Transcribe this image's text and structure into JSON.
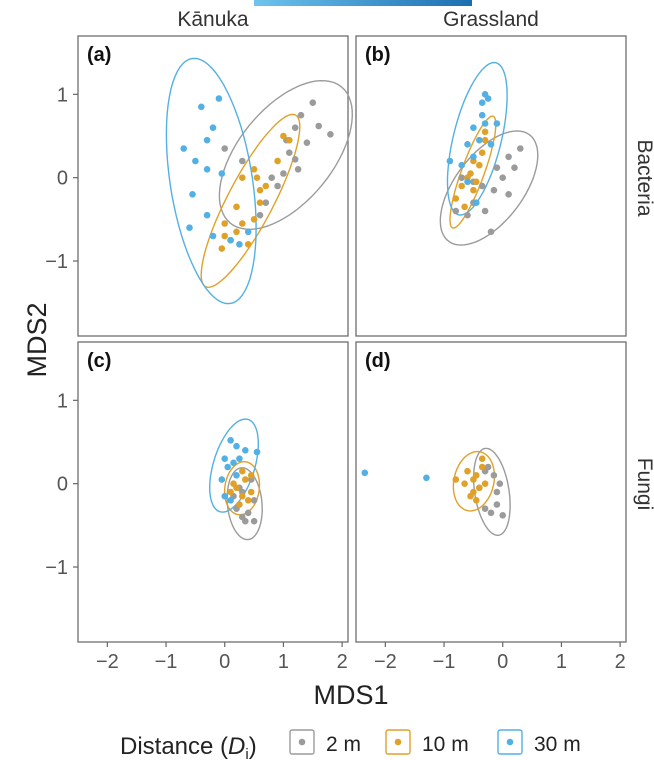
{
  "colors": {
    "2 m": "#9b9b9b",
    "10 m": "#e0a129",
    "30 m": "#53b0e4"
  },
  "legend": {
    "title_prefix": "Distance (",
    "title_symbol": "D",
    "title_sub": "i",
    "title_suffix": ")",
    "entries": [
      "2 m",
      "10 m",
      "30 m"
    ]
  },
  "chart_data": {
    "type": "scatter",
    "xlabel": "MDS1",
    "ylabel": "MDS2",
    "columns": [
      "Kānuka",
      "Grassland"
    ],
    "rows": [
      "Bacteria",
      "Fungi"
    ],
    "xlim": [
      -2.5,
      2.1
    ],
    "ylim": [
      -1.9,
      1.7
    ],
    "xticks": [
      -2,
      -1,
      0,
      1,
      2
    ],
    "yticks": [
      -1,
      0,
      1
    ],
    "ellipses": true,
    "legend_position": "bottom",
    "panels": [
      {
        "label": "(a)",
        "column": "Kānuka",
        "row": "Bacteria",
        "groups": [
          {
            "name": "2 m",
            "points": [
              [
                1.0,
                0.05
              ],
              [
                1.1,
                0.3
              ],
              [
                1.2,
                0.22
              ],
              [
                1.3,
                0.75
              ],
              [
                1.4,
                0.42
              ],
              [
                1.6,
                0.62
              ],
              [
                1.8,
                0.52
              ],
              [
                1.5,
                0.9
              ],
              [
                1.2,
                0.6
              ],
              [
                1.05,
                0.45
              ],
              [
                0.7,
                -0.3
              ],
              [
                0.8,
                0.0
              ],
              [
                1.25,
                0.1
              ],
              [
                0.6,
                -0.45
              ],
              [
                0.9,
                -0.1
              ],
              [
                0.3,
                0.2
              ],
              [
                0.0,
                0.35
              ]
            ]
          },
          {
            "name": "10 m",
            "points": [
              [
                0.0,
                -0.55
              ],
              [
                0.0,
                -0.7
              ],
              [
                -0.05,
                -0.85
              ],
              [
                0.2,
                -0.65
              ],
              [
                0.3,
                -0.55
              ],
              [
                0.1,
                -0.75
              ],
              [
                0.5,
                -0.5
              ],
              [
                0.6,
                -0.3
              ],
              [
                0.7,
                -0.1
              ],
              [
                0.9,
                0.2
              ],
              [
                1.0,
                0.5
              ],
              [
                1.1,
                0.45
              ],
              [
                0.5,
                0.1
              ],
              [
                0.2,
                -0.35
              ],
              [
                0.4,
                -0.8
              ],
              [
                0.3,
                0.0
              ],
              [
                0.6,
                -0.15
              ],
              [
                0.55,
                0.0
              ]
            ]
          },
          {
            "name": "30 m",
            "points": [
              [
                -0.4,
                0.85
              ],
              [
                -0.1,
                0.95
              ],
              [
                -0.2,
                0.6
              ],
              [
                -0.7,
                0.35
              ],
              [
                -0.5,
                0.2
              ],
              [
                -0.3,
                0.45
              ],
              [
                -0.55,
                -0.2
              ],
              [
                -0.3,
                0.1
              ],
              [
                -0.05,
                0.05
              ],
              [
                -0.6,
                -0.6
              ],
              [
                -0.3,
                -0.45
              ],
              [
                -0.2,
                -0.7
              ],
              [
                0.1,
                -0.75
              ],
              [
                0.25,
                -0.8
              ],
              [
                0.4,
                -0.65
              ]
            ]
          }
        ]
      },
      {
        "label": "(b)",
        "column": "Grassland",
        "row": "Bacteria",
        "groups": [
          {
            "name": "2 m",
            "points": [
              [
                0.3,
                0.35
              ],
              [
                0.1,
                0.25
              ],
              [
                0.2,
                0.12
              ],
              [
                -0.1,
                0.12
              ],
              [
                0.1,
                -0.2
              ],
              [
                -0.15,
                -0.15
              ],
              [
                -0.3,
                -0.4
              ],
              [
                -0.5,
                -0.3
              ],
              [
                -0.2,
                -0.65
              ],
              [
                -0.6,
                -0.45
              ],
              [
                -0.8,
                -0.4
              ],
              [
                -0.35,
                -0.1
              ],
              [
                -0.7,
                0.0
              ],
              [
                0.0,
                0.0
              ],
              [
                -0.5,
                -0.05
              ]
            ]
          },
          {
            "name": "10 m",
            "points": [
              [
                -0.3,
                0.45
              ],
              [
                -0.35,
                0.3
              ],
              [
                -0.5,
                0.2
              ],
              [
                -0.55,
                0.05
              ],
              [
                -0.6,
                0.0
              ],
              [
                -0.7,
                -0.1
              ],
              [
                -0.8,
                -0.25
              ],
              [
                -0.65,
                -0.35
              ],
              [
                -0.5,
                -0.15
              ],
              [
                -0.4,
                0.15
              ],
              [
                -0.45,
                -0.05
              ],
              [
                -0.3,
                0.55
              ]
            ]
          },
          {
            "name": "30 m",
            "points": [
              [
                -0.3,
                1.0
              ],
              [
                -0.25,
                0.95
              ],
              [
                -0.35,
                0.9
              ],
              [
                -0.1,
                0.65
              ],
              [
                -0.35,
                0.75
              ],
              [
                -0.4,
                0.45
              ],
              [
                -0.6,
                0.4
              ],
              [
                -0.5,
                0.25
              ],
              [
                -0.7,
                0.15
              ],
              [
                -0.9,
                0.2
              ],
              [
                -0.6,
                -0.05
              ],
              [
                -0.45,
                -0.3
              ],
              [
                -0.3,
                0.65
              ],
              [
                -0.5,
                0.6
              ],
              [
                -0.2,
                0.4
              ]
            ]
          }
        ]
      },
      {
        "label": "(c)",
        "column": "Kānuka",
        "row": "Fungi",
        "groups": [
          {
            "name": "2 m",
            "points": [
              [
                0.4,
                -0.35
              ],
              [
                0.3,
                -0.4
              ],
              [
                0.2,
                -0.3
              ],
              [
                0.5,
                -0.2
              ],
              [
                0.45,
                0.05
              ],
              [
                0.3,
                -0.1
              ],
              [
                0.15,
                -0.15
              ],
              [
                0.5,
                -0.45
              ],
              [
                0.35,
                -0.45
              ],
              [
                0.25,
                -0.05
              ]
            ]
          },
          {
            "name": "10 m",
            "points": [
              [
                0.3,
                0.15
              ],
              [
                0.35,
                0.05
              ],
              [
                0.2,
                -0.05
              ],
              [
                0.45,
                -0.1
              ],
              [
                0.25,
                -0.25
              ],
              [
                0.4,
                -0.2
              ],
              [
                0.15,
                0.0
              ],
              [
                0.3,
                -0.15
              ],
              [
                0.45,
                0.1
              ],
              [
                0.1,
                -0.1
              ]
            ]
          },
          {
            "name": "30 m",
            "points": [
              [
                0.1,
                0.52
              ],
              [
                0.2,
                0.45
              ],
              [
                0.35,
                0.4
              ],
              [
                0.55,
                0.38
              ],
              [
                0.0,
                0.3
              ],
              [
                0.15,
                0.25
              ],
              [
                0.25,
                0.3
              ],
              [
                0.05,
                0.2
              ],
              [
                -0.05,
                0.05
              ],
              [
                0.0,
                -0.15
              ],
              [
                0.1,
                -0.2
              ],
              [
                0.2,
                0.1
              ]
            ]
          }
        ]
      },
      {
        "label": "(d)",
        "column": "Grassland",
        "row": "Fungi",
        "groups": [
          {
            "name": "2 m",
            "points": [
              [
                -0.1,
                -0.1
              ],
              [
                -0.2,
                -0.35
              ],
              [
                -0.3,
                -0.3
              ],
              [
                0.0,
                -0.38
              ],
              [
                -0.05,
                0.0
              ],
              [
                -0.15,
                0.1
              ],
              [
                -0.3,
                0.15
              ],
              [
                -0.4,
                -0.05
              ],
              [
                -0.1,
                -0.25
              ],
              [
                -0.25,
                0.2
              ]
            ]
          },
          {
            "name": "10 m",
            "points": [
              [
                -0.6,
                0.15
              ],
              [
                -0.5,
                0.05
              ],
              [
                -0.45,
                0.1
              ],
              [
                -0.35,
                0.2
              ],
              [
                -0.3,
                0.0
              ],
              [
                -0.5,
                -0.1
              ],
              [
                -0.4,
                -0.05
              ],
              [
                -0.65,
                0.0
              ],
              [
                -0.55,
                -0.15
              ],
              [
                -0.35,
                0.3
              ],
              [
                -0.45,
                -0.2
              ],
              [
                -0.8,
                0.05
              ]
            ]
          },
          {
            "name": "30 m",
            "points": [
              [
                -2.35,
                0.13
              ],
              [
                -1.3,
                0.07
              ]
            ]
          }
        ]
      }
    ]
  }
}
